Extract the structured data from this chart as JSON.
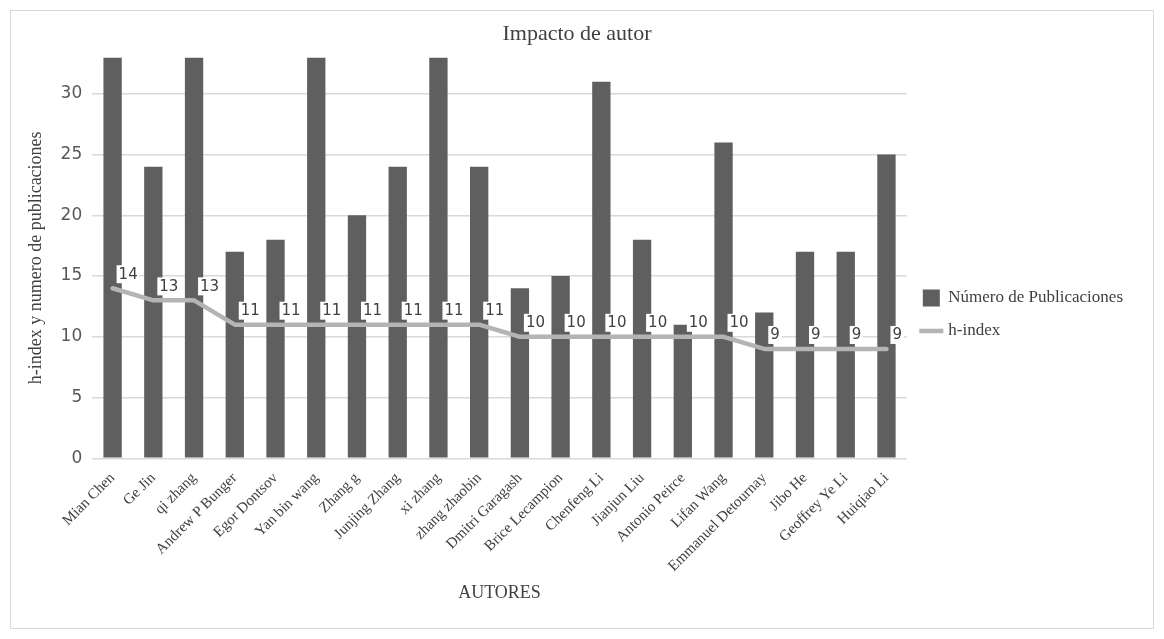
{
  "chart_data": {
    "type": "bar",
    "title": "Impacto de autor",
    "xlabel": "AUTORES",
    "ylabel": "h-index y numero de publicaciones",
    "categories": [
      "Mian Chen",
      "Ge Jin",
      "qi zhang",
      "Andrew P Bunger",
      "Egor Dontsov",
      "Yan bin wang",
      "Zhang g",
      "Junjing Zhang",
      "xi zhang",
      "zhang zhaobin",
      "Dmitri Garagash",
      "Brice Lecampion",
      "Chenfeng Li",
      "Jianjun Liu",
      "Antonio Peirce",
      "Lifan Wang",
      "Emmanuel Detournay",
      "Jibo He",
      "Geoffrey Ye Li",
      "Huiqiao Li"
    ],
    "series": [
      {
        "name": "Número de Publicaciones",
        "color": "#5f5f5f",
        "values": [
          33,
          24,
          33,
          17,
          18,
          33,
          20,
          24,
          33,
          24,
          14,
          15,
          31,
          18,
          11,
          26,
          12,
          17,
          17,
          25
        ]
      },
      {
        "name": "h-index",
        "type": "line",
        "color": "#b4b4b4",
        "values": [
          14,
          13,
          13,
          11,
          11,
          11,
          11,
          11,
          11,
          11,
          10,
          10,
          10,
          10,
          10,
          10,
          9,
          9,
          9,
          9
        ],
        "value_labels": [
          "14",
          "13",
          "13",
          "11",
          "11",
          "11",
          "11",
          "11",
          "11",
          "11",
          "10",
          "10",
          "10",
          "10",
          "10",
          "10",
          "9",
          "9",
          "9",
          "9"
        ]
      }
    ],
    "ylim": [
      0,
      33
    ],
    "yticks": [
      0,
      5,
      10,
      15,
      20,
      25,
      30
    ],
    "grid": "y",
    "legend": "right",
    "marker": "none"
  }
}
